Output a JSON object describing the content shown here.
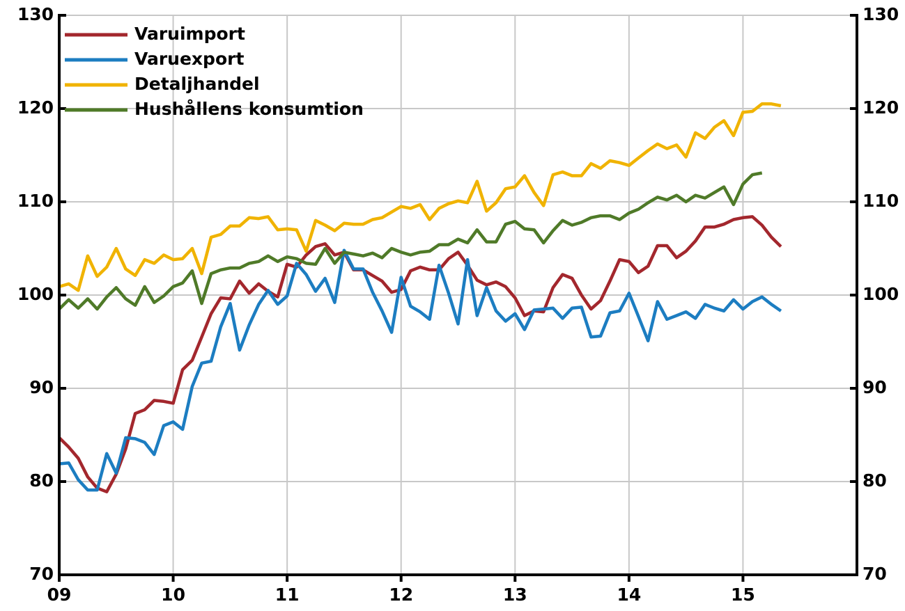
{
  "chart_data": {
    "type": "line",
    "x": [
      2009,
      2009.083,
      2009.167,
      2009.25,
      2009.333,
      2009.417,
      2009.5,
      2009.583,
      2009.667,
      2009.75,
      2009.833,
      2009.917,
      2010,
      2010.083,
      2010.167,
      2010.25,
      2010.333,
      2010.417,
      2010.5,
      2010.583,
      2010.667,
      2010.75,
      2010.833,
      2010.917,
      2011,
      2011.083,
      2011.167,
      2011.25,
      2011.333,
      2011.417,
      2011.5,
      2011.583,
      2011.667,
      2011.75,
      2011.833,
      2011.917,
      2012,
      2012.083,
      2012.167,
      2012.25,
      2012.333,
      2012.417,
      2012.5,
      2012.583,
      2012.667,
      2012.75,
      2012.833,
      2012.917,
      2013,
      2013.083,
      2013.167,
      2013.25,
      2013.333,
      2013.417,
      2013.5,
      2013.583,
      2013.667,
      2013.75,
      2013.833,
      2013.917,
      2014,
      2014.083,
      2014.167,
      2014.25,
      2014.333,
      2014.417,
      2014.5,
      2014.583,
      2014.667,
      2014.75,
      2014.833,
      2014.917,
      2015,
      2015.083,
      2015.167,
      2015.25,
      2015.333
    ],
    "series": [
      {
        "name": "Varuimport",
        "color": "#a3272d",
        "values": [
          84.7,
          83.7,
          82.5,
          80.5,
          79.3,
          78.9,
          80.8,
          83.5,
          87.3,
          87.7,
          88.7,
          88.6,
          88.4,
          92,
          93,
          95.5,
          98,
          99.7,
          99.6,
          101.5,
          100.2,
          101.2,
          100.4,
          99.8,
          103.3,
          103,
          104.3,
          105.2,
          105.5,
          104.3,
          104.6,
          102.7,
          102.7,
          102.1,
          101.5,
          100.3,
          100.6,
          102.6,
          103,
          102.7,
          102.7,
          103.9,
          104.6,
          103.2,
          101.6,
          101.1,
          101.4,
          100.9,
          99.7,
          97.8,
          98.3,
          98.2,
          100.8,
          102.2,
          101.8,
          100,
          98.5,
          99.4,
          101.5,
          103.8,
          103.6,
          102.4,
          103.1,
          105.3,
          105.3,
          104,
          104.7,
          105.8,
          107.3,
          107.3,
          107.6,
          108.1,
          108.3,
          108.4,
          107.5,
          106.2,
          105.2
        ]
      },
      {
        "name": "Varuexport",
        "color": "#1c7dc1",
        "values": [
          81.9,
          82,
          80.2,
          79.1,
          79.1,
          83,
          80.9,
          84.7,
          84.6,
          84.2,
          82.9,
          86,
          86.4,
          85.6,
          90.2,
          92.7,
          92.9,
          96.6,
          99.1,
          94.1,
          96.8,
          99,
          100.5,
          99,
          99.9,
          103.4,
          102.2,
          100.4,
          101.8,
          99.2,
          104.8,
          102.8,
          102.8,
          100.3,
          98.3,
          96,
          101.9,
          98.8,
          98.2,
          97.4,
          103.2,
          100.2,
          96.9,
          103.8,
          97.8,
          100.8,
          98.3,
          97.2,
          98,
          96.3,
          98.4,
          98.5,
          98.6,
          97.5,
          98.6,
          98.7,
          95.5,
          95.6,
          98.1,
          98.3,
          100.2,
          97.7,
          95.1,
          99.3,
          97.4,
          97.8,
          98.2,
          97.5,
          99,
          98.6,
          98.3,
          99.5,
          98.5,
          99.3,
          99.8,
          99,
          98.3
        ]
      },
      {
        "name": "Detaljhandel",
        "color": "#f0b300",
        "values": [
          100.9,
          101.2,
          100.5,
          104.2,
          102,
          103,
          105,
          102.8,
          102.1,
          103.8,
          103.4,
          104.3,
          103.8,
          103.9,
          105,
          102.3,
          106.2,
          106.5,
          107.4,
          107.4,
          108.3,
          108.2,
          108.4,
          107,
          107.1,
          107,
          104.7,
          108,
          107.5,
          106.9,
          107.7,
          107.6,
          107.6,
          108.1,
          108.3,
          108.9,
          109.5,
          109.3,
          109.7,
          108.1,
          109.3,
          109.8,
          110.1,
          109.9,
          112.2,
          109,
          109.9,
          111.4,
          111.6,
          112.8,
          111,
          109.6,
          112.9,
          113.2,
          112.8,
          112.8,
          114.1,
          113.6,
          114.4,
          114.2,
          113.9,
          114.7,
          115.5,
          116.2,
          115.7,
          116.1,
          114.8,
          117.4,
          116.8,
          118,
          118.7,
          117.1,
          119.6,
          119.7,
          120.5,
          120.5,
          120.3
        ]
      },
      {
        "name": "Hushållens konsumtion",
        "color": "#4f7a28",
        "values": [
          98.5,
          99.5,
          98.6,
          99.6,
          98.5,
          99.8,
          100.8,
          99.6,
          98.9,
          100.9,
          99.2,
          99.9,
          100.9,
          101.3,
          102.6,
          99.1,
          102.3,
          102.7,
          102.9,
          102.9,
          103.4,
          103.6,
          104.2,
          103.6,
          104.1,
          103.9,
          103.4,
          103.3,
          105,
          103.4,
          104.6,
          104.4,
          104.2,
          104.5,
          104,
          105,
          104.6,
          104.3,
          104.6,
          104.7,
          105.4,
          105.4,
          106,
          105.6,
          107,
          105.7,
          105.7,
          107.6,
          107.9,
          107.1,
          107,
          105.6,
          106.9,
          108,
          107.5,
          107.8,
          108.3,
          108.5,
          108.5,
          108.1,
          108.8,
          109.2,
          109.9,
          110.5,
          110.2,
          110.7,
          110,
          110.7,
          110.4,
          111,
          111.6,
          109.7,
          111.9,
          112.9,
          113.1,
          null,
          null
        ]
      }
    ],
    "xlim": [
      2009,
      2016
    ],
    "xticks": [
      {
        "value": 2009,
        "label": "09"
      },
      {
        "value": 2010,
        "label": "10"
      },
      {
        "value": 2011,
        "label": "11"
      },
      {
        "value": 2012,
        "label": "12"
      },
      {
        "value": 2013,
        "label": "13"
      },
      {
        "value": 2014,
        "label": "14"
      },
      {
        "value": 2015,
        "label": "15"
      }
    ],
    "ylim": [
      70,
      130
    ],
    "yticks": [
      70,
      80,
      90,
      100,
      110,
      120,
      130
    ],
    "y2lim": [
      70,
      130
    ],
    "y2ticks": [
      70,
      80,
      90,
      100,
      110,
      120,
      130
    ],
    "grid": true,
    "legend": "upper left"
  }
}
